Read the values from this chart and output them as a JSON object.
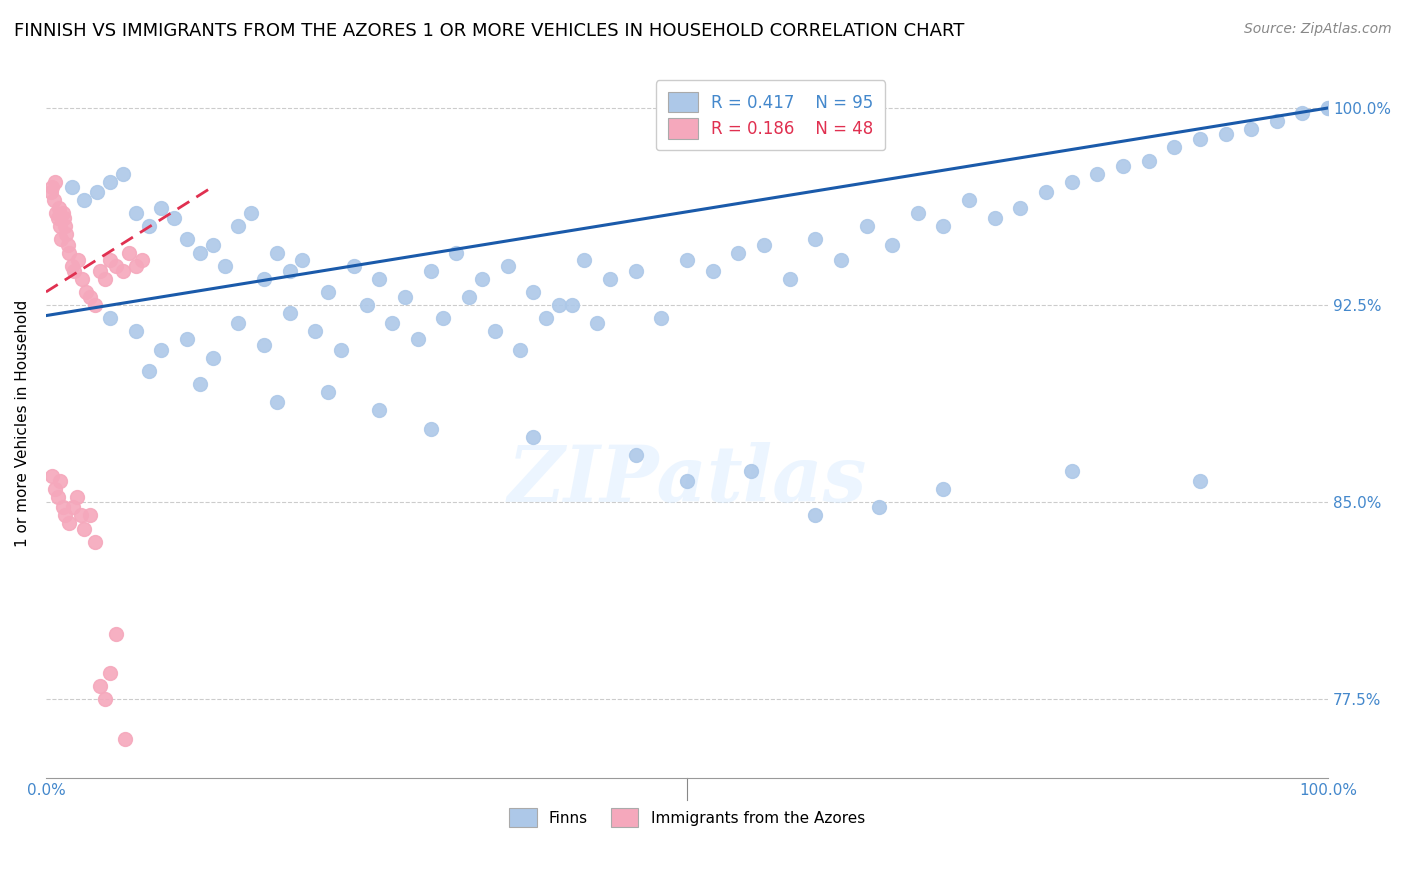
{
  "title": "FINNISH VS IMMIGRANTS FROM THE AZORES 1 OR MORE VEHICLES IN HOUSEHOLD CORRELATION CHART",
  "source": "Source: ZipAtlas.com",
  "ylabel": "1 or more Vehicles in Household",
  "ytick_labels": [
    "100.0%",
    "92.5%",
    "85.0%",
    "77.5%"
  ],
  "ytick_values": [
    1.0,
    0.925,
    0.85,
    0.775
  ],
  "finns_R": 0.417,
  "finns_N": 95,
  "azores_R": 0.186,
  "azores_N": 48,
  "finns_color": "#adc8e8",
  "azores_color": "#f5a8bc",
  "finns_line_color": "#1a5aaa",
  "azores_line_color": "#e03050",
  "background_color": "#ffffff",
  "watermark": "ZIPatlas",
  "title_fontsize": 13,
  "axis_label_color": "#4488cc",
  "finns_x": [
    0.02,
    0.03,
    0.04,
    0.05,
    0.06,
    0.07,
    0.08,
    0.09,
    0.1,
    0.11,
    0.12,
    0.13,
    0.14,
    0.15,
    0.16,
    0.17,
    0.18,
    0.19,
    0.2,
    0.22,
    0.24,
    0.26,
    0.28,
    0.3,
    0.32,
    0.34,
    0.36,
    0.38,
    0.4,
    0.42,
    0.44,
    0.46,
    0.48,
    0.5,
    0.52,
    0.54,
    0.56,
    0.58,
    0.6,
    0.62,
    0.64,
    0.66,
    0.68,
    0.7,
    0.72,
    0.74,
    0.76,
    0.78,
    0.8,
    0.82,
    0.84,
    0.86,
    0.88,
    0.9,
    0.92,
    0.94,
    0.96,
    0.98,
    1.0,
    0.05,
    0.07,
    0.09,
    0.11,
    0.13,
    0.15,
    0.17,
    0.19,
    0.21,
    0.23,
    0.25,
    0.27,
    0.29,
    0.31,
    0.33,
    0.35,
    0.37,
    0.39,
    0.41,
    0.43,
    0.08,
    0.12,
    0.18,
    0.22,
    0.26,
    0.3,
    0.38,
    0.46,
    0.55,
    0.65,
    0.5,
    0.6,
    0.7,
    0.8,
    0.9,
    1.0
  ],
  "finns_y": [
    0.97,
    0.965,
    0.968,
    0.972,
    0.975,
    0.96,
    0.955,
    0.962,
    0.958,
    0.95,
    0.945,
    0.948,
    0.94,
    0.955,
    0.96,
    0.935,
    0.945,
    0.938,
    0.942,
    0.93,
    0.94,
    0.935,
    0.928,
    0.938,
    0.945,
    0.935,
    0.94,
    0.93,
    0.925,
    0.942,
    0.935,
    0.938,
    0.92,
    0.942,
    0.938,
    0.945,
    0.948,
    0.935,
    0.95,
    0.942,
    0.955,
    0.948,
    0.96,
    0.955,
    0.965,
    0.958,
    0.962,
    0.968,
    0.972,
    0.975,
    0.978,
    0.98,
    0.985,
    0.988,
    0.99,
    0.992,
    0.995,
    0.998,
    1.0,
    0.92,
    0.915,
    0.908,
    0.912,
    0.905,
    0.918,
    0.91,
    0.922,
    0.915,
    0.908,
    0.925,
    0.918,
    0.912,
    0.92,
    0.928,
    0.915,
    0.908,
    0.92,
    0.925,
    0.918,
    0.9,
    0.895,
    0.888,
    0.892,
    0.885,
    0.878,
    0.875,
    0.868,
    0.862,
    0.848,
    0.858,
    0.845,
    0.855,
    0.862,
    0.858,
    1.0
  ],
  "azores_x": [
    0.004,
    0.005,
    0.006,
    0.007,
    0.008,
    0.009,
    0.01,
    0.011,
    0.012,
    0.013,
    0.014,
    0.015,
    0.016,
    0.017,
    0.018,
    0.02,
    0.022,
    0.025,
    0.028,
    0.031,
    0.034,
    0.038,
    0.042,
    0.046,
    0.05,
    0.055,
    0.06,
    0.065,
    0.07,
    0.075,
    0.005,
    0.007,
    0.009,
    0.011,
    0.013,
    0.015,
    0.018,
    0.021,
    0.024,
    0.027,
    0.03,
    0.034,
    0.038,
    0.042,
    0.046,
    0.05,
    0.055,
    0.062
  ],
  "azores_y": [
    0.968,
    0.97,
    0.965,
    0.972,
    0.96,
    0.958,
    0.962,
    0.955,
    0.95,
    0.96,
    0.958,
    0.955,
    0.952,
    0.948,
    0.945,
    0.94,
    0.938,
    0.942,
    0.935,
    0.93,
    0.928,
    0.925,
    0.938,
    0.935,
    0.942,
    0.94,
    0.938,
    0.945,
    0.94,
    0.942,
    0.86,
    0.855,
    0.852,
    0.858,
    0.848,
    0.845,
    0.842,
    0.848,
    0.852,
    0.845,
    0.84,
    0.845,
    0.835,
    0.78,
    0.775,
    0.785,
    0.8,
    0.76
  ]
}
